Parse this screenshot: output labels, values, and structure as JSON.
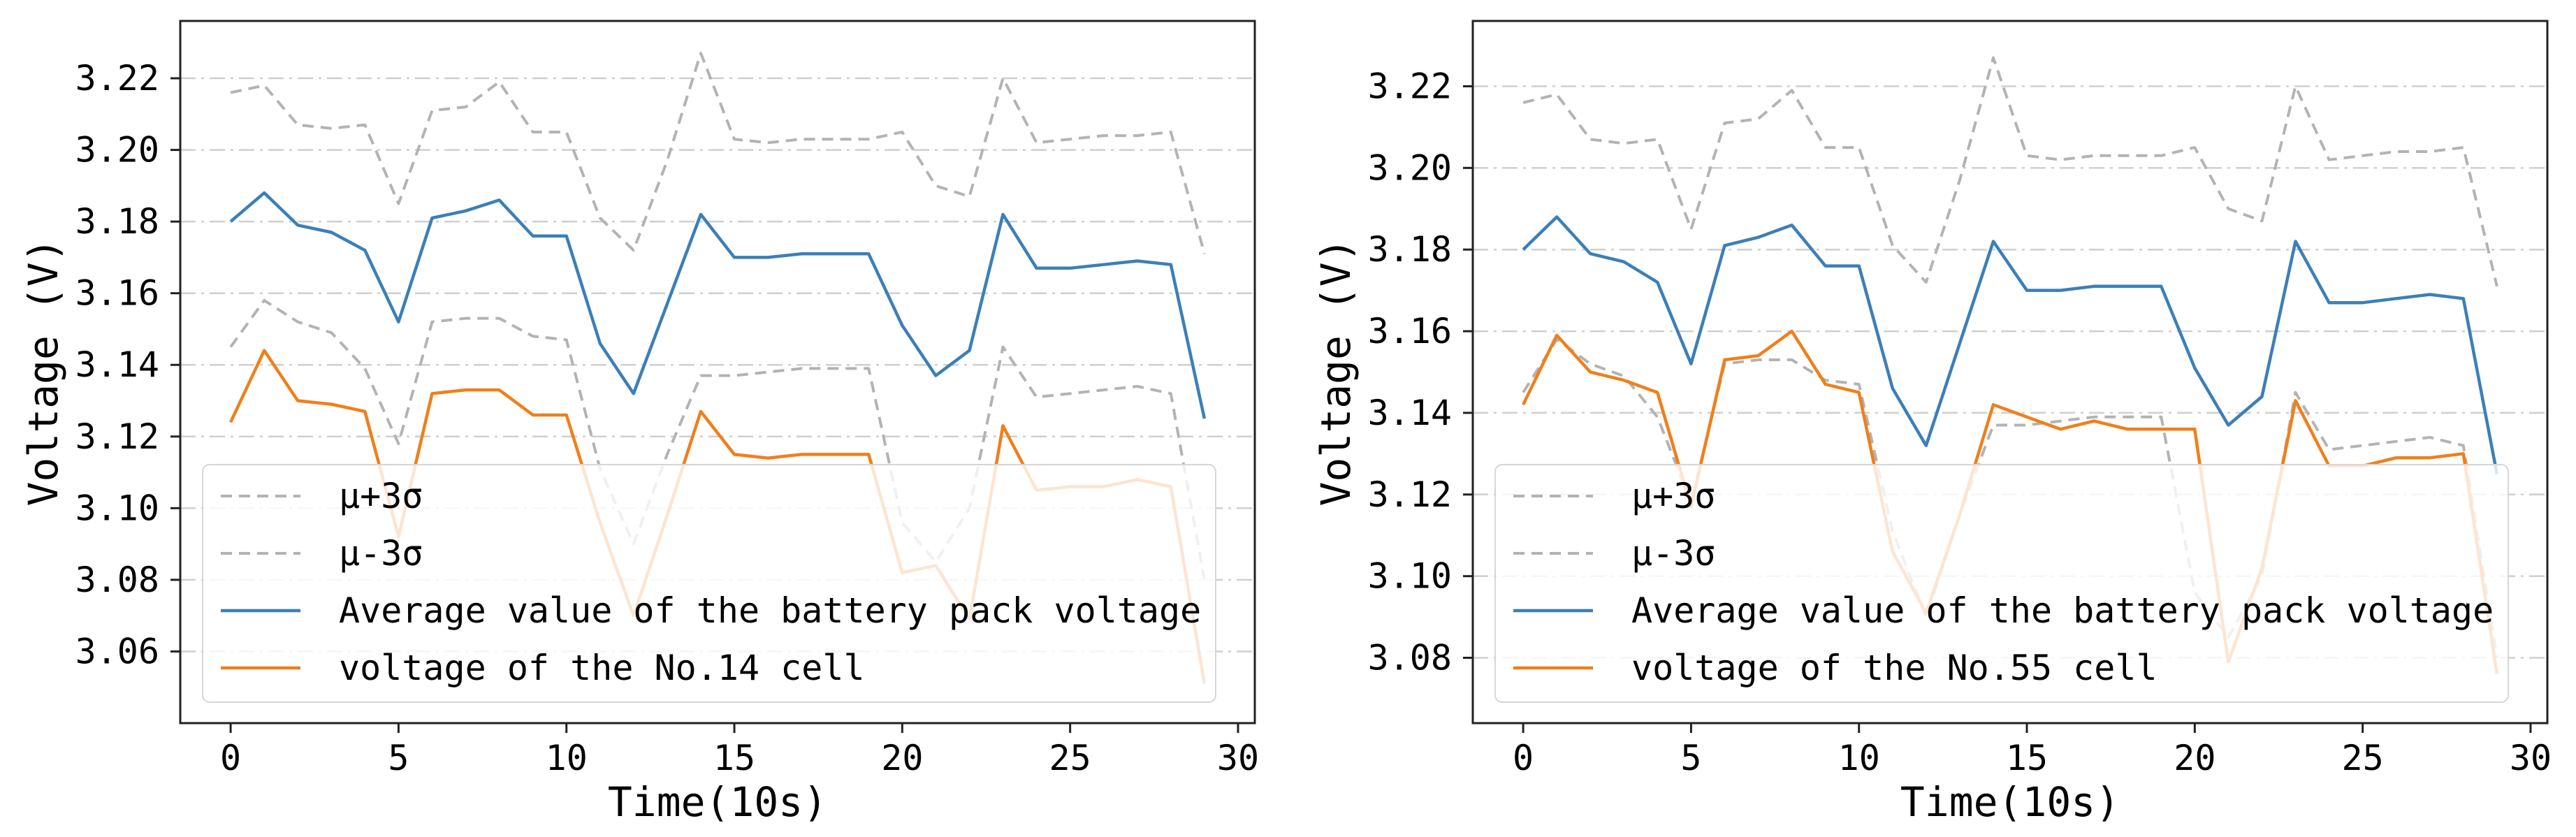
{
  "colors": {
    "average": "#3b7fb8",
    "cell": "#f07f1a",
    "bounds": "#b3b3b3",
    "grid": "#cfcfcf",
    "frame": "#222222"
  },
  "chart_data": [
    {
      "type": "line",
      "xlabel": "Time(10s)",
      "ylabel": "Voltage (V)",
      "xlim": [
        -1.5,
        30.5
      ],
      "ylim": [
        3.04,
        3.236
      ],
      "xticks": [
        0,
        5,
        10,
        15,
        20,
        25,
        30
      ],
      "xtick_labels": [
        "0",
        "5",
        "10",
        "15",
        "20",
        "25",
        "30"
      ],
      "yticks": [
        3.06,
        3.08,
        3.1,
        3.12,
        3.14,
        3.16,
        3.18,
        3.2,
        3.22
      ],
      "ytick_labels": [
        "3.06",
        "3.08",
        "3.10",
        "3.12",
        "3.14",
        "3.16",
        "3.18",
        "3.20",
        "3.22"
      ],
      "grid": "horizontal dash-dot",
      "legend_position": "lower-left",
      "x": [
        0,
        1,
        2,
        3,
        4,
        5,
        6,
        7,
        8,
        9,
        10,
        11,
        12,
        13,
        14,
        15,
        16,
        17,
        18,
        19,
        20,
        21,
        22,
        23,
        24,
        25,
        26,
        27,
        28,
        29
      ],
      "series": [
        {
          "name": "μ+3σ",
          "style": "dashed",
          "color_key": "bounds",
          "values": [
            3.216,
            3.218,
            3.207,
            3.206,
            3.207,
            3.185,
            3.211,
            3.212,
            3.219,
            3.205,
            3.205,
            3.181,
            3.172,
            3.197,
            3.227,
            3.203,
            3.202,
            3.203,
            3.203,
            3.203,
            3.205,
            3.19,
            3.187,
            3.22,
            3.202,
            3.203,
            3.204,
            3.204,
            3.205,
            3.171
          ]
        },
        {
          "name": "μ-3σ",
          "style": "dashed",
          "color_key": "bounds",
          "values": [
            3.145,
            3.158,
            3.152,
            3.149,
            3.139,
            3.118,
            3.152,
            3.153,
            3.153,
            3.148,
            3.147,
            3.111,
            3.09,
            3.115,
            3.137,
            3.137,
            3.138,
            3.139,
            3.139,
            3.139,
            3.096,
            3.085,
            3.1,
            3.145,
            3.131,
            3.132,
            3.133,
            3.134,
            3.132,
            3.08
          ]
        },
        {
          "name": "Average value of the battery pack voltage",
          "style": "solid",
          "color_key": "average",
          "values": [
            3.18,
            3.188,
            3.179,
            3.177,
            3.172,
            3.152,
            3.181,
            3.183,
            3.186,
            3.176,
            3.176,
            3.146,
            3.132,
            3.157,
            3.182,
            3.17,
            3.17,
            3.171,
            3.171,
            3.171,
            3.151,
            3.137,
            3.144,
            3.182,
            3.167,
            3.167,
            3.168,
            3.169,
            3.168,
            3.125
          ]
        },
        {
          "name": "voltage of the No.14 cell",
          "style": "solid",
          "color_key": "cell",
          "values": [
            3.124,
            3.144,
            3.13,
            3.129,
            3.127,
            3.092,
            3.132,
            3.133,
            3.133,
            3.126,
            3.126,
            3.096,
            3.07,
            3.098,
            3.127,
            3.115,
            3.114,
            3.115,
            3.115,
            3.115,
            3.082,
            3.084,
            3.069,
            3.123,
            3.105,
            3.106,
            3.106,
            3.108,
            3.106,
            3.051
          ]
        }
      ]
    },
    {
      "type": "line",
      "xlabel": "Time(10s)",
      "ylabel": "Voltage (V)",
      "xlim": [
        -1.5,
        30.5
      ],
      "ylim": [
        3.064,
        3.236
      ],
      "xticks": [
        0,
        5,
        10,
        15,
        20,
        25,
        30
      ],
      "xtick_labels": [
        "0",
        "5",
        "10",
        "15",
        "20",
        "25",
        "30"
      ],
      "yticks": [
        3.08,
        3.1,
        3.12,
        3.14,
        3.16,
        3.18,
        3.2,
        3.22
      ],
      "ytick_labels": [
        "3.08",
        "3.10",
        "3.12",
        "3.14",
        "3.16",
        "3.18",
        "3.20",
        "3.22"
      ],
      "grid": "horizontal dash-dot",
      "legend_position": "lower-left",
      "x": [
        0,
        1,
        2,
        3,
        4,
        5,
        6,
        7,
        8,
        9,
        10,
        11,
        12,
        13,
        14,
        15,
        16,
        17,
        18,
        19,
        20,
        21,
        22,
        23,
        24,
        25,
        26,
        27,
        28,
        29
      ],
      "series": [
        {
          "name": "μ+3σ",
          "style": "dashed",
          "color_key": "bounds",
          "values": [
            3.216,
            3.218,
            3.207,
            3.206,
            3.207,
            3.185,
            3.211,
            3.212,
            3.219,
            3.205,
            3.205,
            3.181,
            3.172,
            3.197,
            3.227,
            3.203,
            3.202,
            3.203,
            3.203,
            3.203,
            3.205,
            3.19,
            3.187,
            3.22,
            3.202,
            3.203,
            3.204,
            3.204,
            3.205,
            3.171
          ]
        },
        {
          "name": "μ-3σ",
          "style": "dashed",
          "color_key": "bounds",
          "values": [
            3.145,
            3.158,
            3.152,
            3.149,
            3.139,
            3.118,
            3.152,
            3.153,
            3.153,
            3.148,
            3.147,
            3.111,
            3.09,
            3.115,
            3.137,
            3.137,
            3.138,
            3.139,
            3.139,
            3.139,
            3.096,
            3.085,
            3.1,
            3.145,
            3.131,
            3.132,
            3.133,
            3.134,
            3.132,
            3.08
          ]
        },
        {
          "name": "Average value of the battery pack voltage",
          "style": "solid",
          "color_key": "average",
          "values": [
            3.18,
            3.188,
            3.179,
            3.177,
            3.172,
            3.152,
            3.181,
            3.183,
            3.186,
            3.176,
            3.176,
            3.146,
            3.132,
            3.157,
            3.182,
            3.17,
            3.17,
            3.171,
            3.171,
            3.171,
            3.151,
            3.137,
            3.144,
            3.182,
            3.167,
            3.167,
            3.168,
            3.169,
            3.168,
            3.125
          ]
        },
        {
          "name": "voltage of the No.55 cell",
          "style": "solid",
          "color_key": "cell",
          "values": [
            3.142,
            3.159,
            3.15,
            3.148,
            3.145,
            3.117,
            3.153,
            3.154,
            3.16,
            3.147,
            3.145,
            3.106,
            3.091,
            3.115,
            3.142,
            3.139,
            3.136,
            3.138,
            3.136,
            3.136,
            3.136,
            3.079,
            3.102,
            3.143,
            3.127,
            3.127,
            3.129,
            3.129,
            3.13,
            3.076
          ]
        }
      ]
    }
  ]
}
